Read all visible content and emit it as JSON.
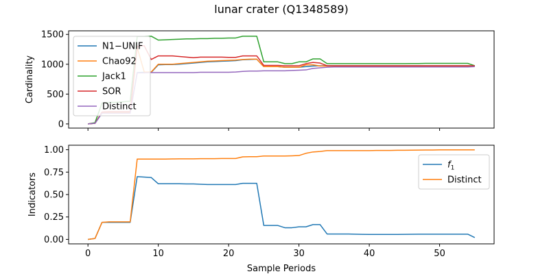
{
  "figure": {
    "title": "lunar crater (Q1348589)",
    "xlabel": "Sample Periods"
  },
  "chart_data": [
    {
      "type": "line",
      "ylabel": "Cardinality",
      "xlim": [
        -2.75,
        57.75
      ],
      "ylim": [
        -70,
        1560
      ],
      "xticks": [
        0,
        10,
        20,
        30,
        40,
        50
      ],
      "yticks": [
        0,
        500,
        1000,
        1500
      ],
      "legend": "upper-left",
      "x": [
        0,
        1,
        2,
        3,
        4,
        5,
        6,
        7,
        8,
        9,
        10,
        11,
        12,
        13,
        14,
        15,
        16,
        17,
        18,
        19,
        20,
        21,
        22,
        23,
        24,
        25,
        26,
        27,
        28,
        29,
        30,
        31,
        32,
        33,
        34,
        35,
        36,
        37,
        38,
        39,
        40,
        41,
        42,
        43,
        44,
        45,
        46,
        47,
        48,
        49,
        50,
        51,
        52,
        53,
        54,
        55
      ],
      "series": [
        {
          "name": "N1−UNIF",
          "color": "#1f77b4",
          "values": [
            0,
            10,
            180,
            185,
            185,
            190,
            190,
            860,
            865,
            865,
            990,
            995,
            995,
            1000,
            1010,
            1020,
            1030,
            1040,
            1045,
            1050,
            1055,
            1060,
            1075,
            1080,
            1085,
            960,
            960,
            960,
            950,
            950,
            950,
            960,
            970,
            975,
            975,
            975,
            975,
            975,
            975,
            975,
            975,
            975,
            975,
            975,
            975,
            975,
            975,
            975,
            975,
            975,
            975,
            975,
            975,
            975,
            975,
            970
          ]
        },
        {
          "name": "Chao92",
          "color": "#ff7f0e",
          "values": [
            0,
            10,
            190,
            190,
            190,
            190,
            190,
            1280,
            870,
            870,
            1000,
            1000,
            1000,
            1010,
            1020,
            1030,
            1040,
            1050,
            1055,
            1060,
            1065,
            1070,
            1080,
            1085,
            1085,
            960,
            960,
            960,
            950,
            950,
            950,
            990,
            990,
            970,
            970,
            970,
            970,
            970,
            970,
            970,
            970,
            970,
            970,
            970,
            970,
            970,
            970,
            970,
            970,
            970,
            970,
            970,
            970,
            970,
            970,
            970
          ]
        },
        {
          "name": "Jack1",
          "color": "#2ca02c",
          "values": [
            0,
            20,
            350,
            360,
            360,
            370,
            380,
            1465,
            1465,
            1470,
            1405,
            1410,
            1415,
            1420,
            1425,
            1425,
            1430,
            1430,
            1435,
            1435,
            1440,
            1440,
            1470,
            1470,
            1470,
            1040,
            1040,
            1040,
            1010,
            1010,
            1040,
            1040,
            1090,
            1090,
            1010,
            1010,
            1010,
            1010,
            1010,
            1010,
            1010,
            1010,
            1010,
            1010,
            1010,
            1010,
            1012,
            1012,
            1015,
            1015,
            1015,
            1015,
            1015,
            1015,
            1015,
            975
          ]
        },
        {
          "name": "SOR",
          "color": "#d62728",
          "values": [
            0,
            10,
            200,
            205,
            205,
            205,
            205,
            1300,
            1310,
            1080,
            1140,
            1140,
            1140,
            1130,
            1120,
            1110,
            1120,
            1120,
            1120,
            1120,
            1115,
            1115,
            1140,
            1140,
            1140,
            980,
            980,
            980,
            975,
            975,
            975,
            1010,
            1030,
            1020,
            975,
            975,
            975,
            975,
            975,
            975,
            975,
            975,
            975,
            975,
            975,
            975,
            975,
            975,
            975,
            975,
            975,
            975,
            975,
            975,
            975,
            975
          ]
        },
        {
          "name": "Distinct",
          "color": "#9467bd",
          "values": [
            0,
            10,
            180,
            180,
            180,
            180,
            180,
            855,
            855,
            860,
            860,
            860,
            860,
            860,
            860,
            860,
            865,
            865,
            865,
            865,
            865,
            870,
            880,
            885,
            885,
            890,
            890,
            890,
            890,
            895,
            900,
            905,
            930,
            940,
            950,
            955,
            955,
            955,
            955,
            955,
            955,
            955,
            955,
            955,
            955,
            955,
            955,
            955,
            955,
            955,
            955,
            955,
            955,
            955,
            955,
            960
          ]
        }
      ]
    },
    {
      "type": "line",
      "ylabel": "Indicators",
      "xlim": [
        -2.75,
        57.75
      ],
      "ylim": [
        -0.05,
        1.05
      ],
      "xticks": [
        0,
        10,
        20,
        30,
        40,
        50
      ],
      "yticks": [
        0.0,
        0.25,
        0.5,
        0.75,
        1.0
      ],
      "legend": "upper-right",
      "x": [
        0,
        1,
        2,
        3,
        4,
        5,
        6,
        7,
        8,
        9,
        10,
        11,
        12,
        13,
        14,
        15,
        16,
        17,
        18,
        19,
        20,
        21,
        22,
        23,
        24,
        25,
        26,
        27,
        28,
        29,
        30,
        31,
        32,
        33,
        34,
        35,
        36,
        37,
        38,
        39,
        40,
        41,
        42,
        43,
        44,
        45,
        46,
        47,
        48,
        49,
        50,
        51,
        52,
        53,
        54,
        55
      ],
      "series": [
        {
          "name": "f1",
          "color": "#1f77b4",
          "values": [
            0.0,
            0.01,
            0.19,
            0.19,
            0.19,
            0.19,
            0.19,
            0.7,
            0.695,
            0.69,
            0.62,
            0.62,
            0.62,
            0.62,
            0.618,
            0.618,
            0.615,
            0.612,
            0.612,
            0.612,
            0.612,
            0.612,
            0.625,
            0.625,
            0.625,
            0.155,
            0.155,
            0.155,
            0.13,
            0.13,
            0.14,
            0.14,
            0.165,
            0.165,
            0.06,
            0.06,
            0.06,
            0.06,
            0.058,
            0.056,
            0.055,
            0.055,
            0.055,
            0.055,
            0.055,
            0.056,
            0.057,
            0.058,
            0.058,
            0.058,
            0.058,
            0.058,
            0.058,
            0.058,
            0.058,
            0.02
          ]
        },
        {
          "name": "Distinct",
          "color": "#ff7f0e",
          "values": [
            0.0,
            0.01,
            0.19,
            0.195,
            0.195,
            0.195,
            0.195,
            0.895,
            0.895,
            0.895,
            0.895,
            0.895,
            0.897,
            0.898,
            0.898,
            0.898,
            0.9,
            0.9,
            0.9,
            0.902,
            0.902,
            0.902,
            0.92,
            0.922,
            0.922,
            0.93,
            0.93,
            0.93,
            0.93,
            0.932,
            0.935,
            0.96,
            0.975,
            0.98,
            0.99,
            0.99,
            0.99,
            0.99,
            0.99,
            0.99,
            0.99,
            0.992,
            0.992,
            0.992,
            0.994,
            0.994,
            0.995,
            0.996,
            0.997,
            0.997,
            0.998,
            0.998,
            0.998,
            0.998,
            0.998,
            0.998
          ]
        }
      ]
    }
  ]
}
